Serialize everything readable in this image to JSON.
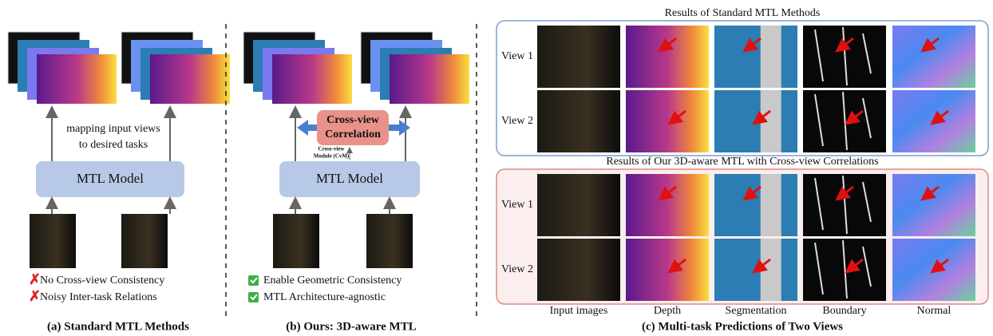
{
  "panel_a": {
    "caption": "(a) Standard MTL Methods",
    "arrow_label": [
      "mapping input views",
      "to desired tasks"
    ],
    "model": "MTL Model",
    "notes": [
      "No Cross-view Consistency",
      "Noisy Inter-task Relations"
    ]
  },
  "panel_b": {
    "caption": "(b) Ours: 3D-aware MTL",
    "model": "MTL Model",
    "correlation": [
      "Cross-view",
      "Correlation"
    ],
    "module": [
      "Cross-view",
      "Module (CvM)"
    ],
    "notes": [
      "Enable Geometric Consistency",
      "MTL Architecture-agnostic"
    ]
  },
  "panel_c": {
    "caption": "(c) Multi-task Predictions of Two Views",
    "groups": [
      {
        "title": "Results of Standard MTL Methods",
        "rows": [
          "View 1",
          "View 2"
        ]
      },
      {
        "title": "Results of Our 3D-aware MTL with Cross-view Correlations",
        "rows": [
          "View 1",
          "View 2"
        ]
      }
    ],
    "columns": [
      "Input images",
      "Depth",
      "Segmentation",
      "Boundary",
      "Normal"
    ]
  }
}
